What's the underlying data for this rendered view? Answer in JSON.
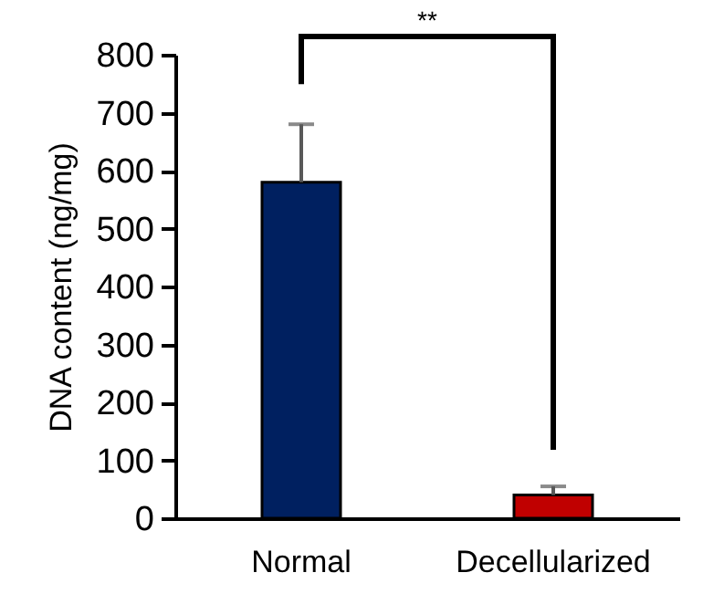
{
  "chart_data": {
    "type": "bar",
    "ylabel": "DNA content (ng/mg)",
    "categories": [
      "Normal",
      "Decellularized"
    ],
    "values": [
      580,
      40
    ],
    "colors": [
      "#002060",
      "#c00000"
    ],
    "errors": [
      [
        580,
        680
      ],
      [
        40,
        55
      ]
    ],
    "ylim": [
      0,
      800
    ],
    "yticks": [
      0,
      100,
      200,
      300,
      400,
      500,
      600,
      700,
      800
    ],
    "grid": false,
    "annotations": [
      "**"
    ]
  }
}
